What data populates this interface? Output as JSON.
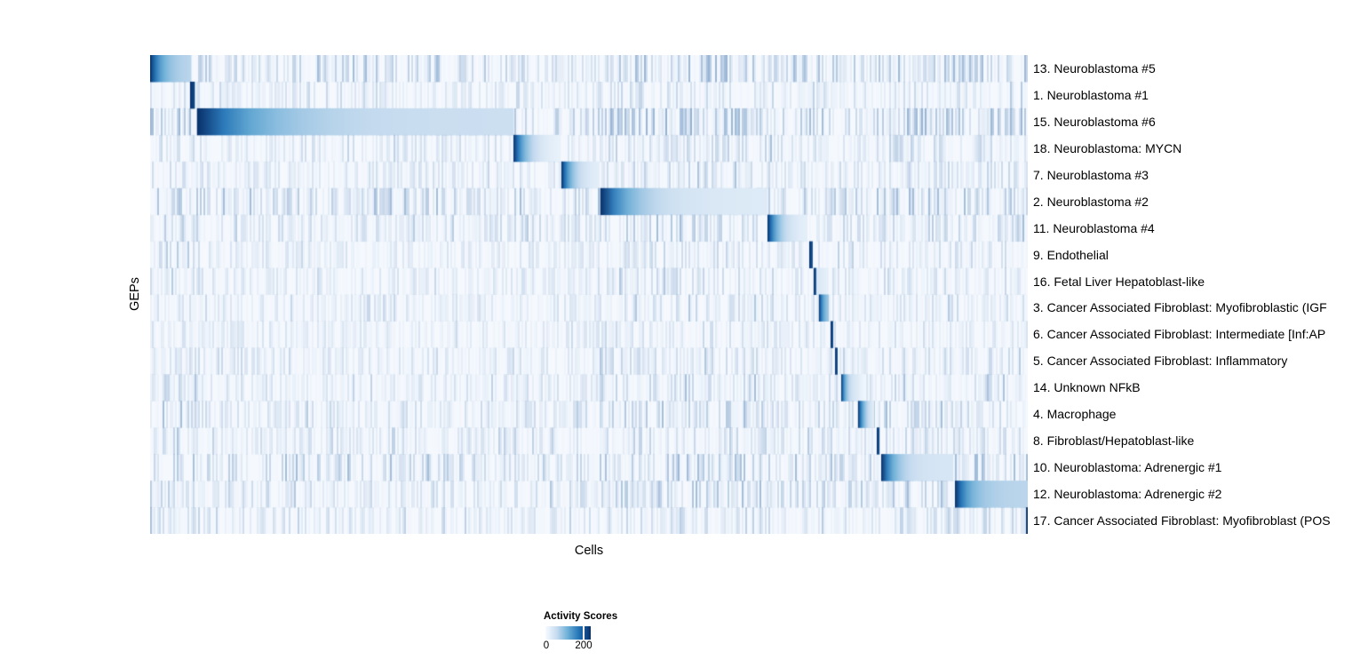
{
  "figure": {
    "xlabel": "Cells",
    "ylabel": "GEPs"
  },
  "legend": {
    "title": "Activity Scores",
    "tick_labels": [
      "0",
      "200"
    ]
  },
  "colors": {
    "heat_min": "#f7fbff",
    "heat_low": "#c6dbef",
    "heat_mid": "#6baed6",
    "heat_high": "#2171b5",
    "heat_max": "#08306b",
    "plot_background": "#f5f9fe",
    "stripe": "110,150,195"
  },
  "chart_data": {
    "type": "heatmap",
    "title": "",
    "xlabel": "Cells",
    "ylabel": "GEPs",
    "value_label": "Activity Scores",
    "colorbar_ticks": [
      0,
      200
    ],
    "colormap": "Blues",
    "x_tick_labels": [],
    "rows": [
      {
        "label": "13. Neuroblastoma #5",
        "block_start": 0.0,
        "block_end": 0.047,
        "end_intensity": 0.28,
        "stripe_level": 0.62
      },
      {
        "label": "1. Neuroblastoma #1",
        "block_start": 0.0455,
        "block_end": 0.051,
        "end_intensity": 0.9,
        "stripe_level": 0.3
      },
      {
        "label": "15. Neuroblastoma #6",
        "block_start": 0.0536,
        "block_end": 0.414,
        "end_intensity": 0.22,
        "stripe_level": 0.62
      },
      {
        "label": "18. Neuroblastoma: MYCN",
        "block_start": 0.414,
        "block_end": 0.468,
        "end_intensity": 0.07,
        "stripe_level": 0.35
      },
      {
        "label": "7. Neuroblastoma #3",
        "block_start": 0.4686,
        "block_end": 0.512,
        "end_intensity": 0.1,
        "stripe_level": 0.32
      },
      {
        "label": "2. Neuroblastoma #2",
        "block_start": 0.513,
        "block_end": 0.7024,
        "end_intensity": 0.13,
        "stripe_level": 0.55
      },
      {
        "label": "11. Neuroblastoma #4",
        "block_start": 0.7034,
        "block_end": 0.749,
        "end_intensity": 0.09,
        "stripe_level": 0.4
      },
      {
        "label": "9. Endothelial",
        "block_start": 0.751,
        "block_end": 0.755,
        "end_intensity": 0.85,
        "stripe_level": 0.3
      },
      {
        "label": "16. Fetal Liver Hepatoblast-like",
        "block_start": 0.756,
        "block_end": 0.759,
        "end_intensity": 0.85,
        "stripe_level": 0.3,
        "tail_end": 0.773,
        "tail_intensity": 0.16
      },
      {
        "label": "3. Cancer Associated Fibroblast: Myofibroblastic (IGF",
        "block_start": 0.762,
        "block_end": 0.7733,
        "end_intensity": 0.35,
        "stripe_level": 0.3
      },
      {
        "label": "6. Cancer Associated Fibroblast: Intermediate [Inf:AP",
        "block_start": 0.7753,
        "block_end": 0.7784,
        "end_intensity": 0.85,
        "stripe_level": 0.28
      },
      {
        "label": "5. Cancer Associated Fibroblast: Inflammatory",
        "block_start": 0.7804,
        "block_end": 0.7834,
        "end_intensity": 0.85,
        "stripe_level": 0.3
      },
      {
        "label": "14. Unknown NFkB",
        "block_start": 0.7874,
        "block_end": 0.8077,
        "end_intensity": 0.12,
        "stripe_level": 0.35,
        "tail_end": 0.816,
        "tail_intensity": 0.1
      },
      {
        "label": "4. Macrophage",
        "block_start": 0.8066,
        "block_end": 0.8249,
        "end_intensity": 0.1,
        "stripe_level": 0.4
      },
      {
        "label": "8. Fibroblast/Hepatoblast-like",
        "block_start": 0.8279,
        "block_end": 0.831,
        "end_intensity": 0.85,
        "stripe_level": 0.35
      },
      {
        "label": "10. Neuroblastoma: Adrenergic #1",
        "block_start": 0.833,
        "block_end": 0.915,
        "end_intensity": 0.16,
        "stripe_level": 0.55
      },
      {
        "label": "12. Neuroblastoma: Adrenergic #2",
        "block_start": 0.917,
        "block_end": 1.0,
        "end_intensity": 0.28,
        "stripe_level": 0.45
      },
      {
        "label": "17. Cancer Associated Fibroblast: Myofibroblast (POS",
        "block_start": 0.998,
        "block_end": 1.0,
        "end_intensity": 0.9,
        "stripe_level": 0.35
      }
    ]
  }
}
